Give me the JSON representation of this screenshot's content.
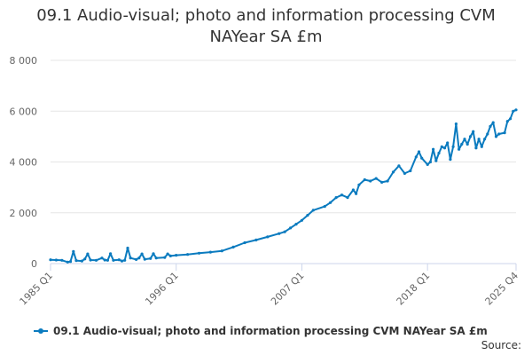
{
  "chart_data": {
    "type": "line",
    "title_line1": "09.1 Audio-visual; photo and information processing CVM",
    "title_line2": "NAYear SA £m",
    "y_ticks": [
      0,
      2000,
      4000,
      6000,
      8000
    ],
    "y_tick_labels": [
      "0",
      "2 000",
      "4 000",
      "6 000",
      "8 000"
    ],
    "ylim": [
      0,
      8000
    ],
    "x_tick_labels": [
      "1985 Q1",
      "1996 Q1",
      "2007 Q1",
      "2018 Q1",
      "2025 Q4"
    ],
    "x_tick_years": [
      1985.0,
      1996.0,
      2007.0,
      2018.0,
      2025.75
    ],
    "x_range": [
      1985.0,
      2025.75
    ],
    "series": [
      {
        "name": "09.1 Audio-visual; photo and information processing CVM NAYear SA £m",
        "color": "#0b7bbf",
        "anchor_points": [
          [
            1985.0,
            150
          ],
          [
            1985.5,
            140
          ],
          [
            1986.0,
            130
          ],
          [
            1986.5,
            60
          ],
          [
            1986.75,
            80
          ],
          [
            1987.0,
            480
          ],
          [
            1987.25,
            120
          ],
          [
            1987.75,
            100
          ],
          [
            1988.0,
            180
          ],
          [
            1988.25,
            380
          ],
          [
            1988.5,
            140
          ],
          [
            1989.0,
            130
          ],
          [
            1989.5,
            220
          ],
          [
            1989.75,
            140
          ],
          [
            1990.0,
            130
          ],
          [
            1990.25,
            390
          ],
          [
            1990.5,
            130
          ],
          [
            1991.0,
            150
          ],
          [
            1991.25,
            100
          ],
          [
            1991.5,
            130
          ],
          [
            1991.75,
            610
          ],
          [
            1992.0,
            220
          ],
          [
            1992.5,
            160
          ],
          [
            1992.75,
            220
          ],
          [
            1993.0,
            380
          ],
          [
            1993.25,
            170
          ],
          [
            1993.75,
            200
          ],
          [
            1994.0,
            390
          ],
          [
            1994.25,
            220
          ],
          [
            1995.0,
            240
          ],
          [
            1995.25,
            380
          ],
          [
            1995.5,
            300
          ],
          [
            1996.0,
            330
          ],
          [
            1997.0,
            360
          ],
          [
            1998.0,
            410
          ],
          [
            1999.0,
            450
          ],
          [
            2000.0,
            500
          ],
          [
            2001.0,
            650
          ],
          [
            2002.0,
            820
          ],
          [
            2003.0,
            930
          ],
          [
            2004.0,
            1050
          ],
          [
            2005.0,
            1180
          ],
          [
            2005.5,
            1250
          ],
          [
            2006.0,
            1400
          ],
          [
            2006.5,
            1550
          ],
          [
            2007.0,
            1700
          ],
          [
            2007.5,
            1900
          ],
          [
            2008.0,
            2100
          ],
          [
            2009.0,
            2250
          ],
          [
            2009.5,
            2400
          ],
          [
            2010.0,
            2600
          ],
          [
            2010.5,
            2700
          ],
          [
            2011.0,
            2600
          ],
          [
            2011.5,
            2900
          ],
          [
            2011.75,
            2750
          ],
          [
            2012.0,
            3100
          ],
          [
            2012.5,
            3300
          ],
          [
            2013.0,
            3250
          ],
          [
            2013.5,
            3350
          ],
          [
            2014.0,
            3200
          ],
          [
            2014.5,
            3250
          ],
          [
            2015.0,
            3600
          ],
          [
            2015.5,
            3850
          ],
          [
            2016.0,
            3550
          ],
          [
            2016.5,
            3650
          ],
          [
            2017.0,
            4200
          ],
          [
            2017.25,
            4400
          ],
          [
            2017.5,
            4150
          ],
          [
            2018.0,
            3900
          ],
          [
            2018.25,
            4000
          ],
          [
            2018.5,
            4500
          ],
          [
            2018.75,
            4050
          ],
          [
            2019.0,
            4350
          ],
          [
            2019.25,
            4600
          ],
          [
            2019.5,
            4550
          ],
          [
            2019.75,
            4750
          ],
          [
            2020.0,
            4100
          ],
          [
            2020.25,
            4600
          ],
          [
            2020.5,
            5500
          ],
          [
            2020.75,
            4500
          ],
          [
            2021.0,
            4700
          ],
          [
            2021.25,
            4900
          ],
          [
            2021.5,
            4700
          ],
          [
            2021.75,
            5000
          ],
          [
            2022.0,
            5200
          ],
          [
            2022.25,
            4550
          ],
          [
            2022.5,
            4900
          ],
          [
            2022.75,
            4600
          ],
          [
            2023.0,
            4900
          ],
          [
            2023.25,
            5100
          ],
          [
            2023.5,
            5400
          ],
          [
            2023.75,
            5550
          ],
          [
            2024.0,
            5000
          ],
          [
            2024.25,
            5100
          ],
          [
            2024.75,
            5150
          ],
          [
            2025.0,
            5600
          ],
          [
            2025.25,
            5700
          ],
          [
            2025.5,
            6000
          ],
          [
            2025.75,
            6050
          ]
        ]
      }
    ]
  },
  "legend": {
    "label": "09.1 Audio-visual; photo and information processing CVM NAYear SA £m"
  },
  "source_label": "Source:"
}
